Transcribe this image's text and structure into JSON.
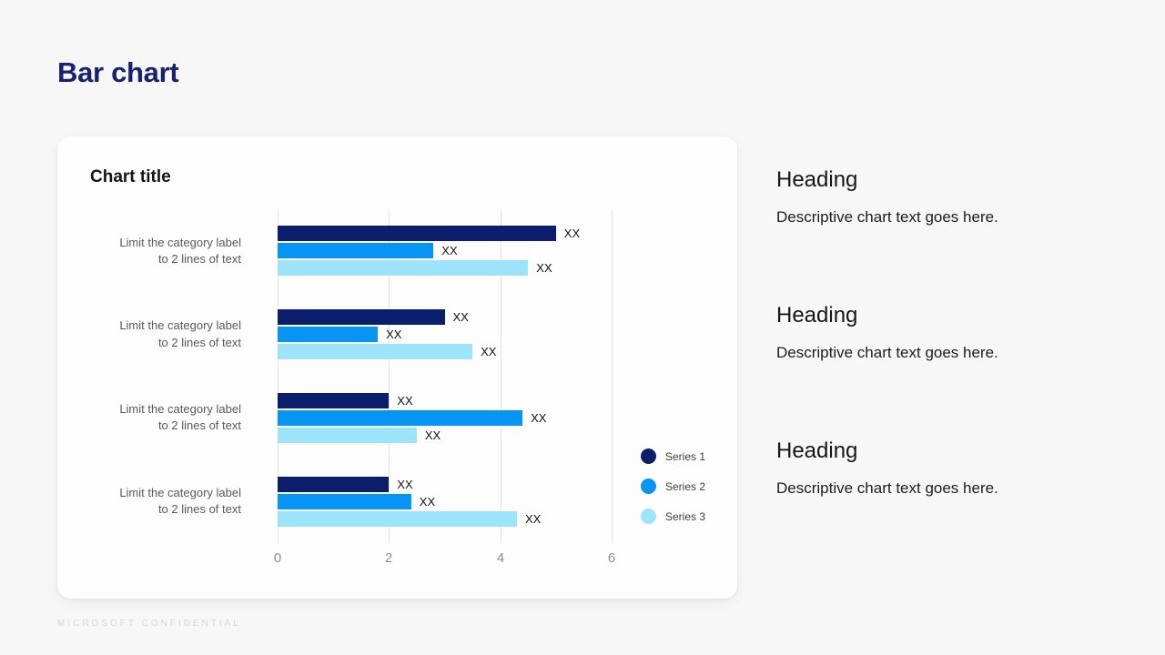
{
  "page": {
    "title": "Bar chart",
    "footer": "MICROSOFT CONFIDENTIAL"
  },
  "chart_data": {
    "type": "bar",
    "orientation": "horizontal",
    "title": "Chart title",
    "categories": [
      "Limit the category label\nto 2 lines of text",
      "Limit the category label\nto 2 lines of text",
      "Limit the category label\nto 2 lines of text",
      "Limit the category label\nto 2 lines of text"
    ],
    "series": [
      {
        "name": "Series 1",
        "color": "#0b1e6b",
        "values": [
          5.0,
          3.0,
          2.0,
          2.0
        ]
      },
      {
        "name": "Series 2",
        "color": "#0695f2",
        "values": [
          2.8,
          1.8,
          4.4,
          2.4
        ]
      },
      {
        "name": "Series 3",
        "color": "#9de4fb",
        "values": [
          4.5,
          3.5,
          2.5,
          4.3
        ]
      }
    ],
    "bar_value_label": "XX",
    "x_ticks": [
      0,
      2,
      4,
      6
    ],
    "xlim": [
      0,
      6
    ],
    "grid": true,
    "legend_position": "right-middle"
  },
  "sections": [
    {
      "heading": "Heading",
      "description": "Descriptive chart text goes here."
    },
    {
      "heading": "Heading",
      "description": "Descriptive chart text goes here."
    },
    {
      "heading": "Heading",
      "description": "Descriptive chart text goes here."
    }
  ],
  "colors": {
    "slide_background": "#f7f7f8",
    "card_background": "#fdfdfd",
    "title": "#19226f",
    "category_label": "#595959",
    "axis_label": "#8e8e8e",
    "gridline": "#e3e3e5"
  }
}
